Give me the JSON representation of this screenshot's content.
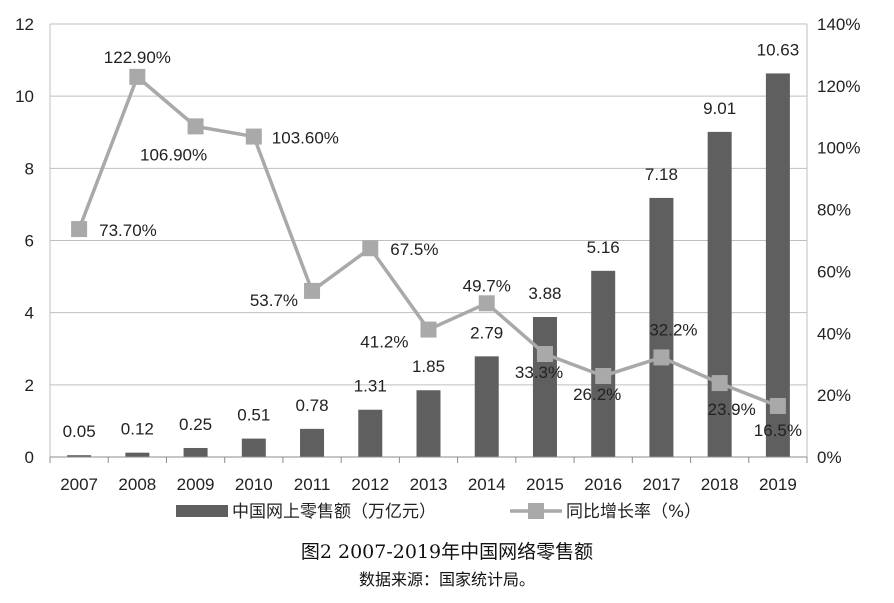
{
  "chart_data": {
    "type": "bar",
    "categories": [
      "2007",
      "2008",
      "2009",
      "2010",
      "2011",
      "2012",
      "2013",
      "2014",
      "2015",
      "2016",
      "2017",
      "2018",
      "2019"
    ],
    "series": [
      {
        "name": "中国网上零售额（万亿元）",
        "type": "bar",
        "axis": "left",
        "values": [
          0.05,
          0.12,
          0.25,
          0.51,
          0.78,
          1.31,
          1.85,
          2.79,
          3.88,
          5.16,
          7.18,
          9.01,
          10.63
        ],
        "labels": [
          "0.05",
          "0.12",
          "0.25",
          "0.51",
          "0.78",
          "1.31",
          "1.85",
          "2.79",
          "3.88",
          "5.16",
          "7.18",
          "9.01",
          "10.63"
        ],
        "color": "#5f5f5f"
      },
      {
        "name": "同比增长率（%）",
        "type": "line",
        "axis": "right",
        "values": [
          73.7,
          122.9,
          106.9,
          103.6,
          53.7,
          67.5,
          41.2,
          49.7,
          33.3,
          26.2,
          32.2,
          23.9,
          16.5
        ],
        "labels": [
          "73.70%",
          "122.90%",
          "106.90%",
          "103.60%",
          "53.7%",
          "67.5%",
          "41.2%",
          "49.7%",
          "33.3%",
          "26.2%",
          "32.2%",
          "23.9%",
          "16.5%"
        ],
        "color": "#a9a9a9"
      }
    ],
    "y_left": {
      "ylim": [
        0,
        12
      ],
      "ticks": [
        "0",
        "2",
        "4",
        "6",
        "8",
        "10",
        "12"
      ]
    },
    "y_right": {
      "ylim": [
        0,
        140
      ],
      "ticks": [
        "0%",
        "20%",
        "40%",
        "60%",
        "80%",
        "100%",
        "120%",
        "140%"
      ]
    },
    "grid": true,
    "legend": "bottom-center",
    "title": "图2  2007-2019年中国网络零售额",
    "source": "数据来源：国家统计局。"
  }
}
